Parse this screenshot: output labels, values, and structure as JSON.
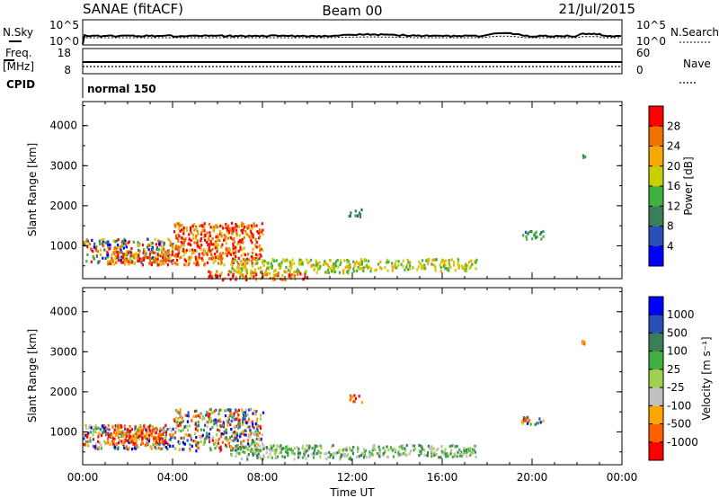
{
  "header": {
    "title": "SANAE (fitACF)",
    "beam": "Beam 00",
    "date": "21/Jul/2015"
  },
  "side_labels": {
    "nsky": "N.Sky",
    "freq": "Freq.",
    "freq_unit": "[MHz]",
    "cpid": "CPID",
    "nsearch": "N.Search",
    "nave": "Nave",
    "cpid_value": "normal 150"
  },
  "strips": {
    "noise_left_ticks": [
      "10^5",
      "10^0"
    ],
    "noise_right_ticks": [
      "10^5",
      "10^0"
    ],
    "freq_left_ticks": [
      "18",
      "8"
    ],
    "nave_right_ticks": [
      "60",
      "0"
    ]
  },
  "colors": {
    "power": [
      "#0000ff",
      "#2a4fb8",
      "#3a7f5a",
      "#40b040",
      "#c8d000",
      "#f5a800",
      "#f07000",
      "#ff0000"
    ],
    "velocity": [
      "#ff0000",
      "#ff6000",
      "#ffa500",
      "#c0c0c0",
      "#a0d050",
      "#40b040",
      "#3a7f5a",
      "#2a4fb8",
      "#0000ff"
    ],
    "noise": "#000000"
  },
  "chart_data": [
    {
      "type": "heatmap",
      "title": "",
      "xlabel": "Time UT",
      "ylabel": "Slant Range [km]",
      "x_ticks": [
        "00:00",
        "04:00",
        "08:00",
        "12:00",
        "16:00",
        "20:00",
        "00:00"
      ],
      "y_ticks": [
        "1000",
        "2000",
        "3000",
        "4000"
      ],
      "xlim": [
        0,
        24
      ],
      "ylim": [
        180,
        4600
      ],
      "colorbar": {
        "label": "Power [dB]",
        "ticks": [
          "4",
          "8",
          "12",
          "16",
          "20",
          "24",
          "28"
        ],
        "range": [
          0,
          32
        ]
      },
      "echo_regions": [
        {
          "time": [
            0.0,
            4.0
          ],
          "range": [
            600,
            1200
          ],
          "level": "mixed"
        },
        {
          "time": [
            1.0,
            4.0
          ],
          "range": [
            550,
            900
          ],
          "level": "high"
        },
        {
          "time": [
            4.0,
            8.0
          ],
          "range": [
            550,
            1600
          ],
          "level": "high"
        },
        {
          "time": [
            5.5,
            10.0
          ],
          "range": [
            180,
            400
          ],
          "level": "high"
        },
        {
          "time": [
            6.5,
            12.0
          ],
          "range": [
            350,
            700
          ],
          "level": "medium"
        },
        {
          "time": [
            12.0,
            17.5
          ],
          "range": [
            400,
            700
          ],
          "level": "medium"
        },
        {
          "time": [
            11.8,
            12.4
          ],
          "range": [
            1750,
            1950
          ],
          "level": "low"
        },
        {
          "time": [
            19.5,
            20.5
          ],
          "range": [
            1200,
            1400
          ],
          "level": "low"
        },
        {
          "time": [
            22.2,
            22.4
          ],
          "range": [
            3200,
            3300
          ],
          "level": "low"
        }
      ]
    },
    {
      "type": "heatmap",
      "title": "",
      "xlabel": "Time UT",
      "ylabel": "Slant Range [km]",
      "x_ticks": [
        "00:00",
        "04:00",
        "08:00",
        "12:00",
        "16:00",
        "20:00",
        "00:00"
      ],
      "y_ticks": [
        "1000",
        "2000",
        "3000",
        "4000"
      ],
      "xlim": [
        0,
        24
      ],
      "ylim": [
        180,
        4600
      ],
      "colorbar": {
        "label": "Velocity [m s⁻¹]",
        "ticks": [
          "-1000",
          "-500",
          "-100",
          "-25",
          "25",
          "100",
          "500",
          "1000"
        ],
        "range": [
          -1200,
          1200
        ]
      },
      "echo_regions": [
        {
          "time": [
            0.0,
            4.0
          ],
          "range": [
            600,
            1200
          ],
          "level": "mixed"
        },
        {
          "time": [
            1.0,
            3.5
          ],
          "range": [
            700,
            1200
          ],
          "level": "negative"
        },
        {
          "time": [
            4.0,
            8.0
          ],
          "range": [
            550,
            1600
          ],
          "level": "mixed"
        },
        {
          "time": [
            6.5,
            12.0
          ],
          "range": [
            350,
            700
          ],
          "level": "positive"
        },
        {
          "time": [
            12.0,
            17.5
          ],
          "range": [
            400,
            700
          ],
          "level": "positive"
        },
        {
          "time": [
            11.8,
            12.4
          ],
          "range": [
            1750,
            1950
          ],
          "level": "negative"
        },
        {
          "time": [
            19.5,
            20.5
          ],
          "range": [
            1200,
            1400
          ],
          "level": "mixed"
        },
        {
          "time": [
            22.2,
            22.4
          ],
          "range": [
            3200,
            3300
          ],
          "level": "negative"
        }
      ]
    }
  ]
}
